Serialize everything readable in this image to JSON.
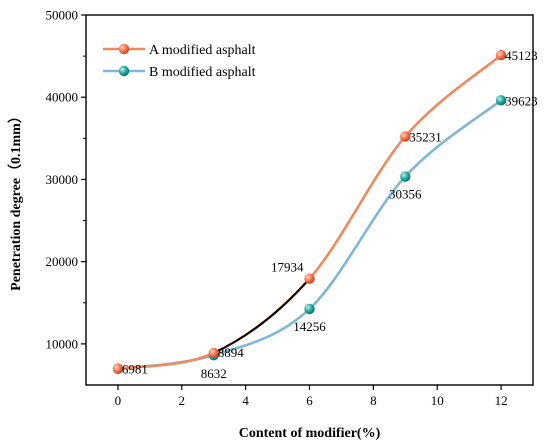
{
  "chart_data": {
    "type": "line",
    "xlabel": "Content of modifier(%)",
    "ylabel": "Penetration degree（0.1mm）",
    "xlim": [
      -1,
      13
    ],
    "ylim": [
      5000,
      50000
    ],
    "x_ticks": [
      "0",
      "2",
      "4",
      "6",
      "8",
      "10",
      "12"
    ],
    "x_tick_values": [
      0,
      2,
      4,
      6,
      8,
      10,
      12
    ],
    "y_ticks": [
      "10000",
      "20000",
      "30000",
      "40000",
      "50000"
    ],
    "y_tick_values": [
      10000,
      20000,
      30000,
      40000,
      50000
    ],
    "grid": false,
    "legend_position": "top-left",
    "series": [
      {
        "name": "A modified asphalt",
        "color": "#f08a5d",
        "marker_color": "#f4704a",
        "x": [
          0,
          3,
          6,
          9,
          12
        ],
        "values": [
          6981,
          8894,
          17934,
          35231,
          45123
        ],
        "labels": [
          "6981",
          "8894",
          "17934",
          "35231",
          "45123"
        ]
      },
      {
        "name": "B modified asphalt",
        "color": "#7fb6d9",
        "marker_color": "#20a89a",
        "x": [
          0,
          3,
          6,
          9,
          12
        ],
        "values": [
          6981,
          8632,
          14256,
          30356,
          39623
        ],
        "labels": [
          "6981",
          "8632",
          "14256",
          "30356",
          "39623"
        ]
      }
    ],
    "connector_color": "#000000"
  }
}
